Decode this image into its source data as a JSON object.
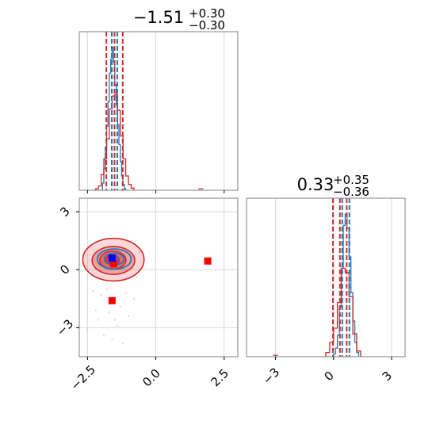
{
  "colors": {
    "blue": "#1f77b4",
    "red": "#d62728",
    "fill_red": "#e8a0a0",
    "grid": "#d9d9d9",
    "marker_red": "#ff0000",
    "marker_blue": "#0000ff"
  },
  "chart_data": [
    {
      "type": "histogram",
      "panel": "top-left marginal (parameter 1)",
      "title": {
        "value": "−1.51",
        "sup": "+0.30",
        "sub": "−0.30"
      },
      "xlim": [
        -2.8,
        3.0
      ],
      "grid": true,
      "vlines_red": [
        -1.81,
        -1.51,
        -1.21
      ],
      "vlines_blue": [
        -1.61,
        -1.41
      ],
      "series": [
        {
          "color": "blue",
          "x": [
            -2.0,
            -1.95,
            -1.9,
            -1.85,
            -1.8,
            -1.75,
            -1.7,
            -1.65,
            -1.6,
            -1.55,
            -1.5,
            -1.45,
            -1.4,
            -1.35,
            -1.3,
            -1.25,
            -1.2,
            -1.15,
            -1.1
          ],
          "values": [
            0.0,
            0.05,
            0.15,
            0.3,
            0.45,
            0.62,
            0.82,
            0.92,
            1.0,
            0.9,
            0.74,
            0.6,
            0.46,
            0.32,
            0.2,
            0.1,
            0.04,
            0.01,
            0.0
          ]
        },
        {
          "color": "red",
          "x": [
            -2.3,
            -2.2,
            -2.1,
            -2.0,
            -1.9,
            -1.8,
            -1.7,
            -1.6,
            -1.5,
            -1.4,
            -1.3,
            -1.2,
            -1.1,
            -1.0,
            -0.9,
            -0.8
          ],
          "values": [
            0.0,
            0.01,
            0.03,
            0.11,
            0.22,
            0.36,
            0.57,
            0.66,
            0.67,
            0.56,
            0.38,
            0.22,
            0.1,
            0.04,
            0.015,
            0.0
          ],
          "outliers": [
            {
              "x": 1.65,
              "value": 0.01
            }
          ]
        }
      ]
    },
    {
      "type": "contour",
      "panel": "bottom-left joint (parameter 1 vs parameter 2)",
      "xlim": [
        -2.8,
        3.0
      ],
      "ylim": [
        -4.5,
        3.7
      ],
      "xticks": [
        -2.5,
        0.0,
        2.5
      ],
      "xtick_labels": [
        "−2.5",
        "0.0",
        "2.5"
      ],
      "yticks": [
        3,
        0,
        -3
      ],
      "ytick_labels": [
        "3",
        "0",
        "−3"
      ],
      "grid": true,
      "red_contours": [
        {
          "cx": -1.55,
          "cy": 0.52,
          "rx": 1.12,
          "ry": 1.1
        },
        {
          "cx": -1.55,
          "cy": 0.48,
          "rx": 0.78,
          "ry": 0.72
        },
        {
          "cx": -1.57,
          "cy": 0.5,
          "rx": 0.48,
          "ry": 0.46
        },
        {
          "cx": -1.58,
          "cy": 0.5,
          "rx": 0.24,
          "ry": 0.26
        }
      ],
      "blue_contours": [
        {
          "cx": -1.52,
          "cy": 0.55,
          "rx": 0.62,
          "ry": 0.52
        },
        {
          "cx": -1.52,
          "cy": 0.55,
          "rx": 0.36,
          "ry": 0.3
        },
        {
          "cx": -1.52,
          "cy": 0.55,
          "rx": 0.16,
          "ry": 0.14
        }
      ],
      "markers_red": [
        {
          "x": -1.55,
          "y": 0.3
        },
        {
          "x": 1.9,
          "y": 0.45
        },
        {
          "x": -1.6,
          "y": -1.6
        }
      ],
      "marker_blue": {
        "x": -1.6,
        "y": 0.6
      },
      "scatter_points": [
        {
          "x": -2.3,
          "y": -1.1
        },
        {
          "x": -2.1,
          "y": -2.6
        },
        {
          "x": -1.9,
          "y": -3.4
        },
        {
          "x": -1.7,
          "y": -2.2
        },
        {
          "x": -1.4,
          "y": -2.9
        },
        {
          "x": -1.2,
          "y": -3.8
        },
        {
          "x": -1.0,
          "y": -2.4
        },
        {
          "x": -2.5,
          "y": -3.1
        },
        {
          "x": -0.8,
          "y": -1.5
        },
        {
          "x": -2.0,
          "y": -1.3
        },
        {
          "x": -1.3,
          "y": -1.9
        },
        {
          "x": -0.9,
          "y": 1.5
        },
        {
          "x": -0.7,
          "y": -0.4
        },
        {
          "x": -2.4,
          "y": 1.2
        },
        {
          "x": -1.6,
          "y": -3.6
        },
        {
          "x": -1.1,
          "y": -1.2
        },
        {
          "x": -2.2,
          "y": -2.1
        },
        {
          "x": -1.8,
          "y": -1.0
        },
        {
          "x": -0.6,
          "y": 0.9
        },
        {
          "x": -1.5,
          "y": -2.6
        }
      ]
    },
    {
      "type": "histogram",
      "panel": "bottom-right marginal (parameter 2)",
      "title": {
        "value": "0.33",
        "sup": "+0.35",
        "sub": "−0.36"
      },
      "xlim": [
        -4.5,
        3.7
      ],
      "xticks": [
        -3,
        0,
        3
      ],
      "xtick_labels": [
        "−3",
        "0",
        "3"
      ],
      "grid": true,
      "vlines_red": [
        -0.03,
        0.33,
        0.68
      ],
      "vlines_blue": [
        0.45,
        0.82
      ],
      "series": [
        {
          "color": "blue",
          "x": [
            -0.1,
            0.0,
            0.1,
            0.2,
            0.3,
            0.4,
            0.5,
            0.6,
            0.7,
            0.8,
            0.9,
            1.0,
            1.1,
            1.2,
            1.3
          ],
          "values": [
            0.0,
            0.02,
            0.06,
            0.15,
            0.35,
            0.62,
            0.92,
            1.0,
            0.9,
            0.7,
            0.45,
            0.25,
            0.1,
            0.03,
            0.0
          ]
        },
        {
          "color": "red",
          "x": [
            -0.6,
            -0.4,
            -0.2,
            0.0,
            0.2,
            0.4,
            0.6,
            0.8,
            1.0,
            1.2,
            1.4
          ],
          "values": [
            0.0,
            0.03,
            0.1,
            0.2,
            0.38,
            0.62,
            0.59,
            0.42,
            0.16,
            0.04,
            0.0
          ],
          "outliers": [
            {
              "x": -3.0,
              "value": 0.01
            }
          ]
        }
      ]
    }
  ]
}
